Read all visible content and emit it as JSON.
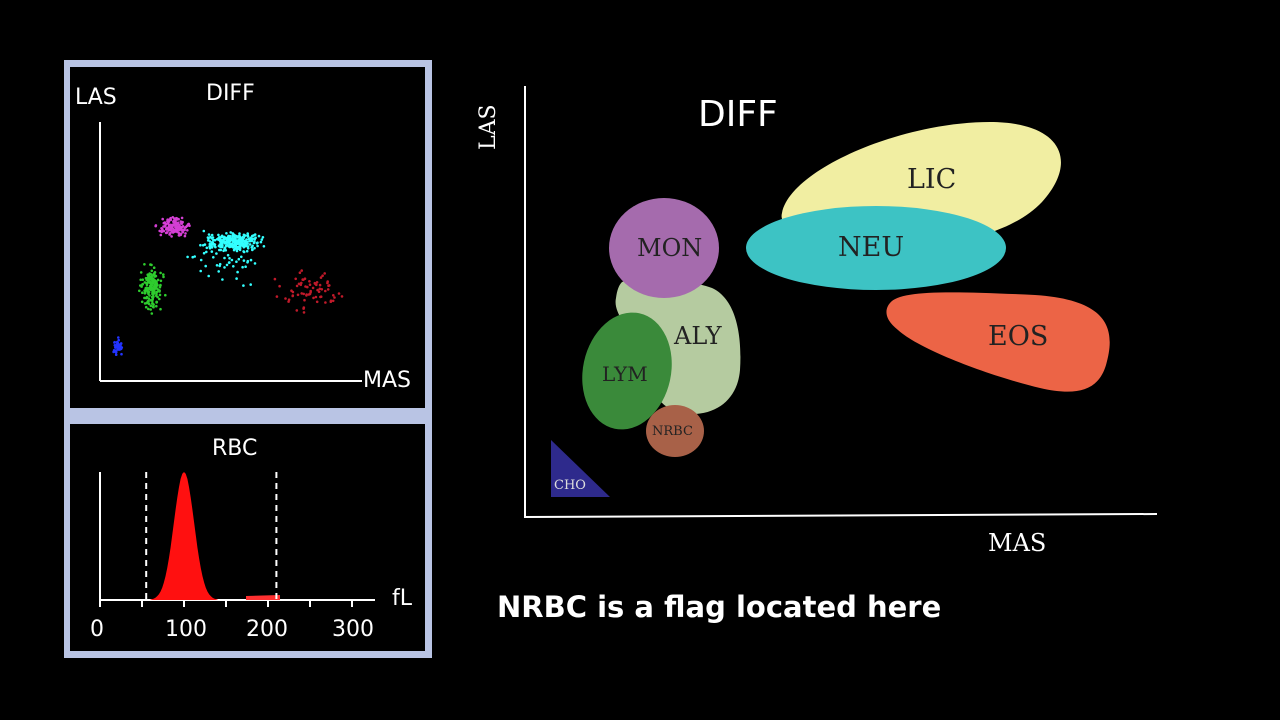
{
  "left": {
    "diff": {
      "title": "DIFF",
      "y_label": "LAS",
      "x_label": "MAS"
    },
    "rbc": {
      "title": "RBC",
      "unit": "fL",
      "ticks": [
        "0",
        "100",
        "200",
        "300"
      ],
      "peak_fl": 100,
      "lower_discriminator_fl": 55,
      "upper_discriminator_fl": 210
    }
  },
  "diagram": {
    "title": "DIFF",
    "y_label": "LAS",
    "x_label": "MAS",
    "regions": [
      {
        "id": "lic",
        "label": "LIC",
        "color": "#f1eea2"
      },
      {
        "id": "neu",
        "label": "NEU",
        "color": "#3dc3c4"
      },
      {
        "id": "mon",
        "label": "MON",
        "color": "#a56bad"
      },
      {
        "id": "aly",
        "label": "ALY",
        "color": "#b5cba0"
      },
      {
        "id": "eos",
        "label": "EOS",
        "color": "#ec6446"
      },
      {
        "id": "lym",
        "label": "LYM",
        "color": "#3a8a3a"
      },
      {
        "id": "nrbc",
        "label": "NRBC",
        "color": "#a86148"
      },
      {
        "id": "cho",
        "label": "CHO",
        "color": "#2e2a8c"
      }
    ]
  },
  "caption": "NRBC is a flag located here"
}
